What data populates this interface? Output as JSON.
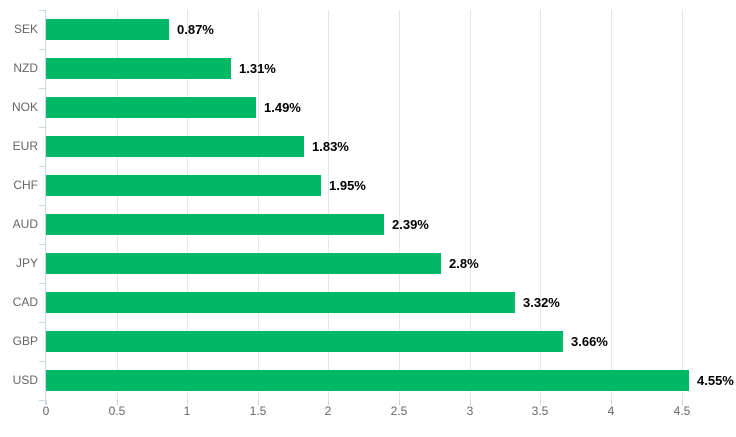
{
  "chart_data": {
    "type": "bar",
    "orientation": "horizontal",
    "title": "",
    "xlabel": "",
    "ylabel": "",
    "categories": [
      "SEK",
      "NZD",
      "NOK",
      "EUR",
      "CHF",
      "AUD",
      "JPY",
      "CAD",
      "GBP",
      "USD"
    ],
    "series": [
      {
        "name": "percent-change",
        "values": [
          0.87,
          1.31,
          1.49,
          1.83,
          1.95,
          2.39,
          2.8,
          3.32,
          3.66,
          4.55
        ],
        "data_labels": [
          "0.87%",
          "1.31%",
          "1.49%",
          "1.83%",
          "1.95%",
          "2.39%",
          "2.8%",
          "3.32%",
          "3.66%",
          "4.55%"
        ]
      }
    ],
    "x_ticks": [
      0,
      0.5,
      1,
      1.5,
      2,
      2.5,
      3,
      3.5,
      4,
      4.5
    ],
    "x_tick_labels": [
      "0",
      "0.5",
      "1",
      "1.5",
      "2",
      "2.5",
      "3",
      "3.5",
      "4",
      "4.5"
    ],
    "xlim": [
      0,
      4.85
    ],
    "grid": true,
    "legend": false,
    "colors": {
      "bar": "#00b865",
      "grid": "#e6e6e6",
      "axis_line": "#ccd6eb",
      "tick": "#ccd6eb",
      "tick_label": "#666666",
      "data_label": "#000000",
      "background": "#ffffff"
    }
  }
}
